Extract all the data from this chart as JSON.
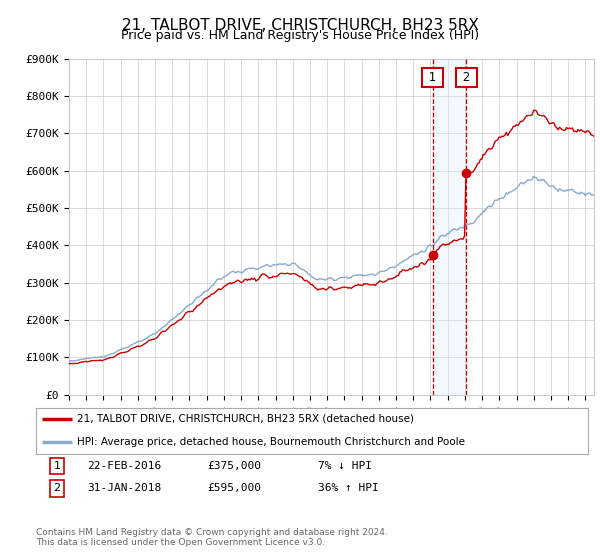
{
  "title": "21, TALBOT DRIVE, CHRISTCHURCH, BH23 5RX",
  "subtitle": "Price paid vs. HM Land Registry's House Price Index (HPI)",
  "ylim": [
    0,
    900000
  ],
  "yticks": [
    0,
    100000,
    200000,
    300000,
    400000,
    500000,
    600000,
    700000,
    800000,
    900000
  ],
  "ytick_labels": [
    "£0",
    "£100K",
    "£200K",
    "£300K",
    "£400K",
    "£500K",
    "£600K",
    "£700K",
    "£800K",
    "£900K"
  ],
  "xlim_start": 1995.0,
  "xlim_end": 2025.5,
  "transaction1_date": 2016.12,
  "transaction1_price": 375000,
  "transaction1_label": "22-FEB-2016",
  "transaction1_pct": "7% ↓ HPI",
  "transaction2_date": 2018.08,
  "transaction2_price": 595000,
  "transaction2_label": "31-JAN-2018",
  "transaction2_pct": "36% ↑ HPI",
  "red_line_color": "#cc0000",
  "blue_line_color": "#88aacc",
  "shade_color": "#ddeeff",
  "vline_color": "#cc0000",
  "legend1": "21, TALBOT DRIVE, CHRISTCHURCH, BH23 5RX (detached house)",
  "legend2": "HPI: Average price, detached house, Bournemouth Christchurch and Poole",
  "footer": "Contains HM Land Registry data © Crown copyright and database right 2024.\nThis data is licensed under the Open Government Licence v3.0.",
  "bg_color": "#ffffff",
  "grid_color": "#cccccc",
  "title_fontsize": 11,
  "subtitle_fontsize": 9,
  "tick_fontsize": 8
}
